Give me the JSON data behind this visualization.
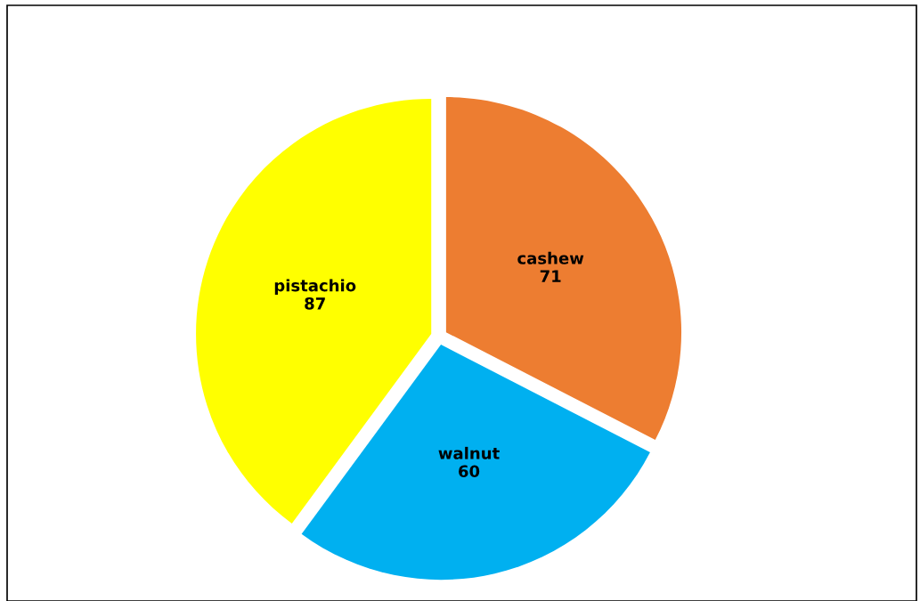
{
  "chart_data": {
    "type": "pie",
    "categories": [
      "cashew",
      "walnut",
      "pistachio"
    ],
    "values": [
      71,
      60,
      87
    ],
    "colors": [
      "#ed7d31",
      "#00b0f0",
      "#ffff00"
    ],
    "data_labels": true,
    "legend": false
  }
}
